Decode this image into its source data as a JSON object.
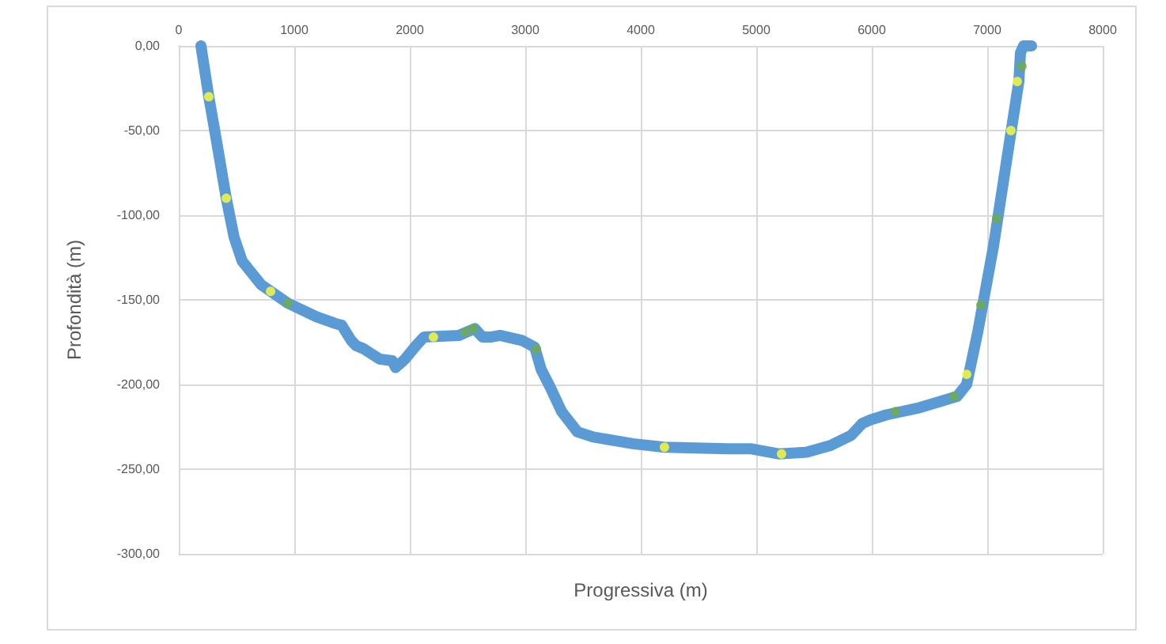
{
  "chart_data": {
    "type": "line",
    "xlabel": "Progressiva (m)",
    "ylabel": "Profondità (m)",
    "xlim": [
      0,
      8000
    ],
    "xticks": [
      0,
      1000,
      2000,
      3000,
      4000,
      5000,
      6000,
      7000,
      8000
    ],
    "ylim": [
      -300,
      0
    ],
    "yticks": [
      {
        "value": 0,
        "label": "0,00"
      },
      {
        "value": -50,
        "label": "-50,00"
      },
      {
        "value": -100,
        "label": "-100,00"
      },
      {
        "value": -150,
        "label": "-150,00"
      },
      {
        "value": -200,
        "label": "-200,00"
      },
      {
        "value": -250,
        "label": "-250,00"
      },
      {
        "value": -300,
        "label": "-300,00"
      }
    ],
    "grid": true,
    "marker": "none",
    "line_style": "solid",
    "series": [
      {
        "color": "#5b9bd5",
        "x": [
          192,
          260,
          329,
          411,
          479,
          548,
          712,
          945,
          1192,
          1356,
          1411,
          1493,
          1534,
          1603,
          1740,
          1849,
          1877,
          1959,
          2055,
          2123,
          2425,
          2562,
          2630,
          2699,
          2781,
          2973,
          3082,
          3137,
          3219,
          3315,
          3452,
          3589,
          3932,
          4205,
          4753,
          4959,
          5192,
          5438,
          5644,
          5822,
          5918,
          5986,
          6123,
          6397,
          6740,
          6822,
          6918,
          7055,
          7192,
          7274,
          7288,
          7315,
          7384
        ],
        "values": [
          0,
          -30,
          -57,
          -90,
          -113,
          -127,
          -141,
          -152,
          -160,
          -164,
          -165,
          -174,
          -177,
          -179,
          -185,
          -186,
          -190,
          -185,
          -177,
          -172,
          -171,
          -167,
          -172,
          -172,
          -171,
          -174,
          -178,
          -191,
          -202,
          -216,
          -228,
          -231,
          -235,
          -237,
          -238,
          -238,
          -241,
          -240,
          -236,
          -230,
          -223,
          -221,
          -218,
          -214,
          -207,
          -200,
          -169,
          -118,
          -57,
          -21,
          -4,
          0,
          0
        ]
      },
      {
        "type": "scatter",
        "color": "#ffff33",
        "marker": "circle",
        "x": [
          260,
          411,
          795,
          2205,
          4205,
          5219,
          6822,
          7205,
          7260
        ],
        "values": [
          -30,
          -90,
          -145,
          -172,
          -237,
          -241,
          -194,
          -50,
          -21
        ]
      },
      {
        "type": "scatter",
        "color": "#70ad47",
        "marker": "circle",
        "x": [
          945,
          2480,
          2550,
          3096,
          6205,
          6712,
          6945,
          7082,
          7301
        ],
        "values": [
          -152,
          -169,
          -167,
          -179,
          -216,
          -207,
          -153,
          -102,
          -12
        ]
      }
    ]
  }
}
